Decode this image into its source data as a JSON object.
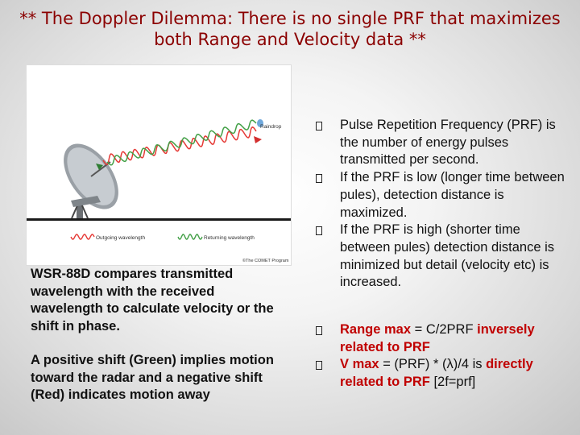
{
  "title": {
    "line1": "** The Doppler Dilemma: There is no single PRF that maximizes",
    "line2": "both Range and Velocity data **"
  },
  "figure": {
    "raindrop_label": "Raindrop",
    "outgoing_label": "Outgoing wavelength",
    "returning_label": "Returning wavelength",
    "credit": "©The COMET Program",
    "colors": {
      "outgoing_wave": "#e53935",
      "returning_wave": "#43a047"
    }
  },
  "left_text": {
    "para1": "WSR-88D compares transmitted wavelength with the received wavelength to calculate velocity or the shift in phase.",
    "para2": "A positive shift (Green) implies motion toward the radar and a negative shift (Red) indicates motion away"
  },
  "bullets_top": [
    "Pulse Repetition Frequency (PRF) is the number of energy pulses transmitted per second.",
    "If the PRF is low (longer time between pules), detection distance is maximized.",
    "If the PRF is high (shorter time between pules) detection distance is minimized but detail (velocity etc) is increased."
  ],
  "bullets_bottom": {
    "range": {
      "a": "Range max",
      "b": " = C/2PRF ",
      "c": "inversely related to PRF"
    },
    "velocity": {
      "a": "V max",
      "b": " = (PRF) * (λ)/4 is ",
      "c": "directly related to PRF",
      "d": " [2f=prf]"
    }
  },
  "colors": {
    "accent_red": "#c00000",
    "title": "#8b0000"
  }
}
